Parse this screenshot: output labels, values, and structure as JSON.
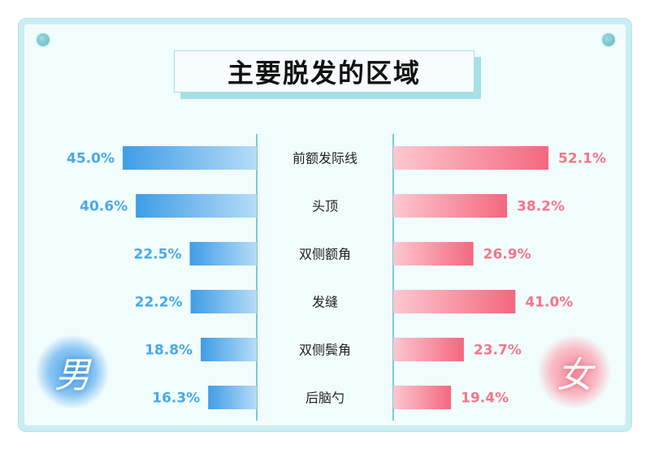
{
  "title": "主要脱发的区域",
  "chart_data": {
    "type": "bar",
    "title": "主要脱发的区域",
    "categories": [
      "前额发际线",
      "头顶",
      "双侧额角",
      "发缝",
      "双侧鬓角",
      "后脑勺"
    ],
    "series": [
      {
        "name": "男",
        "values": [
          45.0,
          40.6,
          22.5,
          22.2,
          18.8,
          16.3
        ],
        "color": "#4aa8e8"
      },
      {
        "name": "女",
        "values": [
          52.1,
          38.2,
          26.9,
          41.0,
          23.7,
          19.4
        ],
        "color": "#f4768a"
      }
    ],
    "value_labels_male": [
      "45.0%",
      "40.6%",
      "22.5%",
      "22.2%",
      "18.8%",
      "16.3%"
    ],
    "value_labels_female": [
      "52.1%",
      "38.2%",
      "26.9%",
      "41.0%",
      "23.7%",
      "19.4%"
    ],
    "xlim": [
      0,
      60
    ],
    "grid": false,
    "legend": "none"
  },
  "colors": {
    "male": "#4aa8e8",
    "female": "#f4768a",
    "axis": "#4fbcc4"
  }
}
